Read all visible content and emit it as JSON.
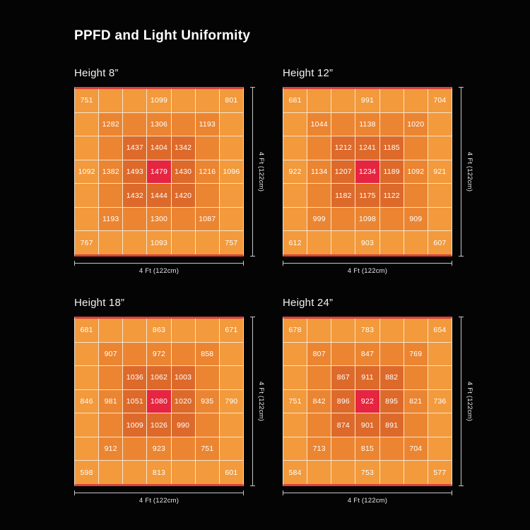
{
  "page_title": "PPFD and Light Uniformity",
  "colors": {
    "background": "#000000",
    "rings": [
      "#e62540",
      "#dd6a2a",
      "#eb8531",
      "#f29a3c"
    ],
    "edge_strip": "#d64141",
    "grid_line": "#f5e3cd",
    "text": "#ffffff"
  },
  "chart_data": [
    {
      "type": "heatmap",
      "title": "Height 8”",
      "grid_size": 7,
      "xlabel": "4 Ft (122cm)",
      "ylabel": "4 Ft (122cm)",
      "value_range": [
        751,
        1493
      ],
      "values": [
        [
          751,
          null,
          null,
          1099,
          null,
          null,
          801
        ],
        [
          null,
          1282,
          null,
          1306,
          null,
          1193,
          null
        ],
        [
          null,
          null,
          1437,
          1404,
          1342,
          null,
          null
        ],
        [
          1092,
          1382,
          1493,
          1479,
          1430,
          1216,
          1096
        ],
        [
          null,
          null,
          1432,
          1444,
          1420,
          null,
          null
        ],
        [
          null,
          1193,
          null,
          1300,
          null,
          1087,
          null
        ],
        [
          767,
          null,
          null,
          1093,
          null,
          null,
          757
        ]
      ]
    },
    {
      "type": "heatmap",
      "title": "Height 12”",
      "grid_size": 7,
      "xlabel": "4 Ft (122cm)",
      "ylabel": "4 Ft (122cm)",
      "value_range": [
        607,
        1241
      ],
      "values": [
        [
          681,
          null,
          null,
          991,
          null,
          null,
          704
        ],
        [
          null,
          1044,
          null,
          1138,
          null,
          1020,
          null
        ],
        [
          null,
          null,
          1212,
          1241,
          1185,
          null,
          null
        ],
        [
          922,
          1134,
          1207,
          1234,
          1189,
          1092,
          921
        ],
        [
          null,
          null,
          1182,
          1175,
          1122,
          null,
          null
        ],
        [
          null,
          999,
          null,
          1098,
          null,
          909,
          null
        ],
        [
          612,
          null,
          null,
          903,
          null,
          null,
          607
        ]
      ]
    },
    {
      "type": "heatmap",
      "title": "Height 18”",
      "grid_size": 7,
      "xlabel": "4 Ft (122cm)",
      "ylabel": "4 Ft (122cm)",
      "value_range": [
        598,
        1080
      ],
      "values": [
        [
          681,
          null,
          null,
          863,
          null,
          null,
          671
        ],
        [
          null,
          907,
          null,
          972,
          null,
          858,
          null
        ],
        [
          null,
          null,
          1036,
          1062,
          1003,
          null,
          null
        ],
        [
          846,
          981,
          1051,
          1080,
          1020,
          935,
          790
        ],
        [
          null,
          null,
          1009,
          1026,
          990,
          null,
          null
        ],
        [
          null,
          912,
          null,
          923,
          null,
          751,
          null
        ],
        [
          598,
          null,
          null,
          813,
          null,
          null,
          601
        ]
      ]
    },
    {
      "type": "heatmap",
      "title": "Height 24”",
      "grid_size": 7,
      "xlabel": "4 Ft (122cm)",
      "ylabel": "4 Ft (122cm)",
      "value_range": [
        577,
        922
      ],
      "values": [
        [
          678,
          null,
          null,
          783,
          null,
          null,
          654
        ],
        [
          null,
          807,
          null,
          847,
          null,
          769,
          null
        ],
        [
          null,
          null,
          867,
          911,
          882,
          null,
          null
        ],
        [
          751,
          842,
          896,
          922,
          895,
          821,
          736
        ],
        [
          null,
          null,
          874,
          901,
          891,
          null,
          null
        ],
        [
          null,
          713,
          null,
          815,
          null,
          704,
          null
        ],
        [
          584,
          null,
          null,
          753,
          null,
          null,
          577
        ]
      ]
    }
  ]
}
